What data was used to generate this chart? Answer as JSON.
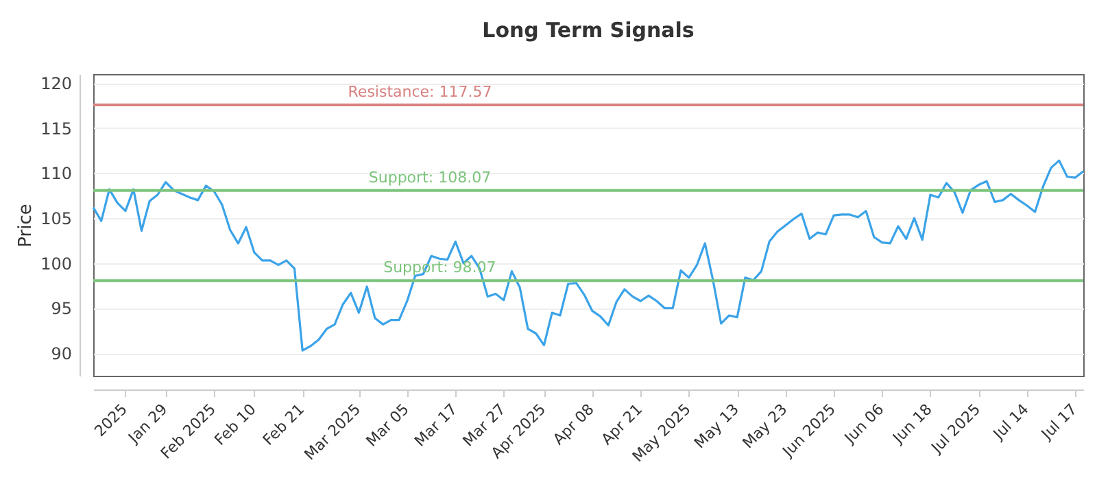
{
  "chart_data": {
    "type": "line",
    "title": "Long Term Signals",
    "ylabel": "Price",
    "categories": [
      null,
      null,
      null,
      null,
      "2025",
      null,
      null,
      null,
      null,
      "Jan 29",
      null,
      null,
      null,
      null,
      null,
      "Feb 2025",
      null,
      null,
      null,
      null,
      "Feb 10",
      null,
      null,
      null,
      null,
      null,
      "Feb 21",
      null,
      null,
      null,
      null,
      null,
      null,
      "Mar 2025",
      null,
      null,
      null,
      null,
      null,
      "Mar 05",
      null,
      null,
      null,
      null,
      null,
      "Mar 17",
      null,
      null,
      null,
      null,
      null,
      "Mar 27",
      null,
      null,
      null,
      null,
      "Apr 2025",
      null,
      null,
      null,
      null,
      null,
      "Apr 08",
      null,
      null,
      null,
      null,
      null,
      "Apr 21",
      null,
      null,
      null,
      null,
      null,
      "May 2025",
      null,
      null,
      null,
      null,
      null,
      "May 13",
      null,
      null,
      null,
      null,
      null,
      "May 23",
      null,
      null,
      null,
      null,
      null,
      "Jun 2025",
      null,
      null,
      null,
      null,
      null,
      "Jun 06",
      null,
      null,
      null,
      null,
      null,
      "Jun 18",
      null,
      null,
      null,
      null,
      null,
      "Jul 2025",
      null,
      null,
      null,
      null,
      null,
      "Jul 14",
      null,
      null,
      null,
      null,
      null,
      "Jul 17",
      null
    ],
    "series": [
      {
        "color": "#3ba3e8",
        "values": [
          106.2,
          104.7,
          108.2,
          106.7,
          105.8,
          108.2,
          103.6,
          106.9,
          107.6,
          109.0,
          108.1,
          107.7,
          107.3,
          107.0,
          108.6,
          108.0,
          106.5,
          103.7,
          102.2,
          104.0,
          101.2,
          100.3,
          100.3,
          99.8,
          100.3,
          99.4,
          90.3,
          90.8,
          91.5,
          92.7,
          93.2,
          95.4,
          96.7,
          94.5,
          97.4,
          93.9,
          93.2,
          93.7,
          93.7,
          95.8,
          98.6,
          98.8,
          100.8,
          100.5,
          100.4,
          102.4,
          100.0,
          100.8,
          99.4,
          96.3,
          96.6,
          95.9,
          99.1,
          97.3,
          92.7,
          92.2,
          90.9,
          94.5,
          94.2,
          97.7,
          97.8,
          96.5,
          94.7,
          94.1,
          93.1,
          95.7,
          97.1,
          96.3,
          95.8,
          96.4,
          95.8,
          95.0,
          95.0,
          99.2,
          98.4,
          99.8,
          102.2,
          98.1,
          93.3,
          94.2,
          94.0,
          98.4,
          98.1,
          99.1,
          102.4,
          103.5,
          104.2,
          104.9,
          105.5,
          102.7,
          103.4,
          103.2,
          105.3,
          105.4,
          105.4,
          105.1,
          105.8,
          102.9,
          102.3,
          102.2,
          104.1,
          102.7,
          105.0,
          102.6,
          107.6,
          107.3,
          108.9,
          107.9,
          105.6,
          108.1,
          108.7,
          109.1,
          106.8,
          107.0,
          107.7,
          107.0,
          106.4,
          105.7,
          108.5,
          110.6,
          111.4,
          109.6,
          109.5,
          110.2
        ]
      }
    ],
    "ylim": [
      87.5,
      121
    ],
    "yticks": [
      90,
      95,
      100,
      105,
      110,
      115,
      120
    ],
    "grid": "y",
    "ref_lines": [
      {
        "axis": "y",
        "value": 117.57,
        "label": "Resistance: 117.57",
        "color": "#d98080"
      },
      {
        "axis": "y",
        "value": 108.07,
        "label": "Support: 108.07",
        "color": "#7cc47c"
      },
      {
        "axis": "y",
        "value": 98.07,
        "label": "Support: 98.07",
        "color": "#7cc47c"
      }
    ]
  }
}
